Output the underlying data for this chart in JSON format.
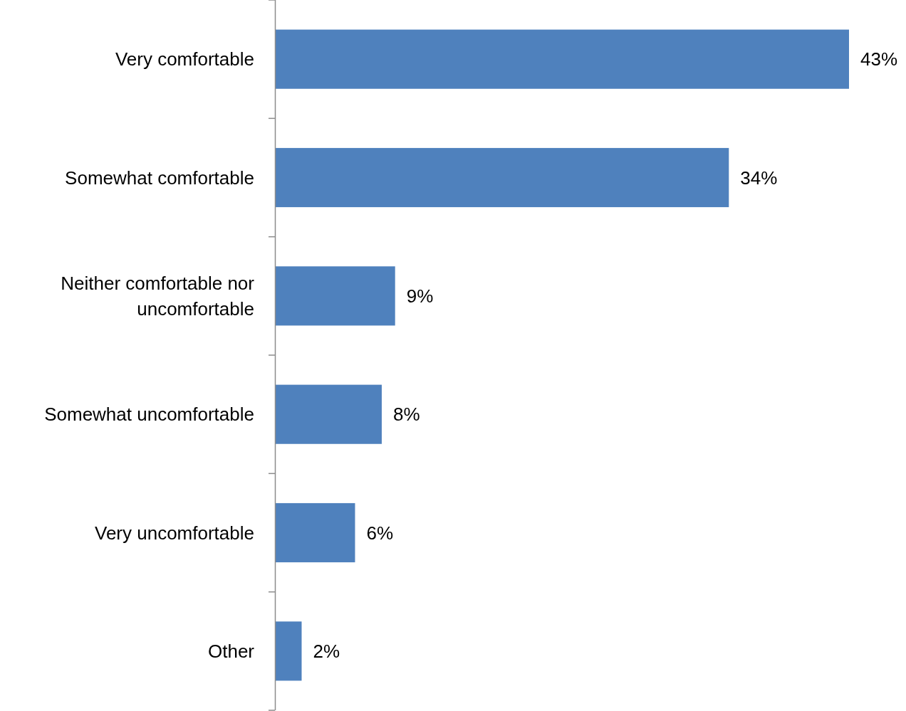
{
  "chart_data": {
    "type": "bar",
    "orientation": "horizontal",
    "categories": [
      "Very comfortable",
      "Somewhat comfortable",
      "Neither comfortable nor uncomfortable",
      "Somewhat uncomfortable",
      "Very uncomfortable",
      "Other"
    ],
    "values": [
      43,
      34,
      9,
      8,
      6,
      2
    ],
    "value_labels": [
      "43%",
      "34%",
      "9%",
      "8%",
      "6%",
      "2%"
    ],
    "color": "#4f81bd"
  }
}
